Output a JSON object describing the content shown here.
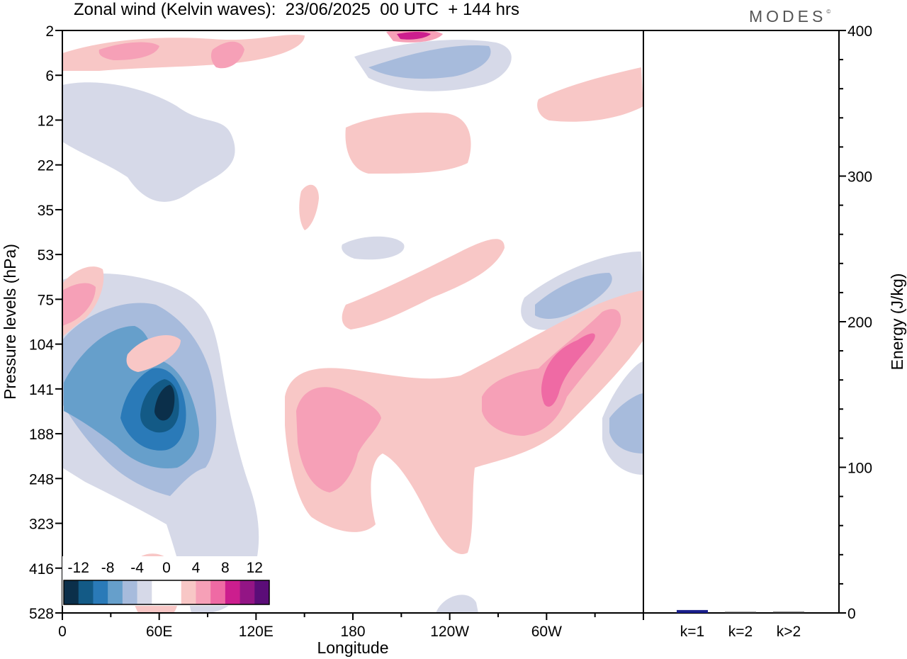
{
  "title": "Zonal wind (Kelvin waves):  23/06/2025  00 UTC  + 144 hrs",
  "logo": "MODES",
  "logo_mark": "©",
  "colors": {
    "scale": [
      "#0b2f4a",
      "#135a86",
      "#2a7ab8",
      "#669fcb",
      "#a7bbdc",
      "#d6d9e8",
      "#ffffff",
      "#ffffff",
      "#f8c7c6",
      "#f6a0b7",
      "#ef6aa4",
      "#cc1e8e",
      "#931585",
      "#5b0d78"
    ],
    "k1_bar": "#1a1f8c"
  },
  "chart_data": [
    {
      "type": "heatmap",
      "title": "Zonal wind (Kelvin waves):  23/06/2025  00 UTC  + 144 hrs",
      "xlabel": "Longitude",
      "ylabel": "Pressure levels (hPa)",
      "x_ticks": [
        "0",
        "60E",
        "120E",
        "180",
        "120W",
        "60W"
      ],
      "y_ticks": [
        "2",
        "6",
        "12",
        "22",
        "35",
        "53",
        "75",
        "104",
        "141",
        "188",
        "248",
        "323",
        "416",
        "528"
      ],
      "colorbar_labels": [
        "-12",
        "-8",
        "-4",
        "0",
        "4",
        "8",
        "12"
      ],
      "colorbar_levels": [
        -14,
        -12,
        -10,
        -8,
        -6,
        -4,
        -2,
        0,
        2,
        4,
        6,
        8,
        10,
        12,
        14
      ],
      "features": [
        {
          "center": [
            "60E",
            "141"
          ],
          "value": -13,
          "sign": "negative"
        },
        {
          "center": [
            "160E",
            "188"
          ],
          "value": 5,
          "sign": "positive"
        },
        {
          "center": [
            "90W",
            "141"
          ],
          "value": 7,
          "sign": "positive"
        },
        {
          "center": [
            "150E",
            "2"
          ],
          "value": 10,
          "sign": "positive"
        }
      ]
    },
    {
      "type": "bar",
      "categories": [
        "k=1",
        "k=2",
        "k>2"
      ],
      "values": [
        2,
        0.5,
        0.8
      ],
      "ylabel": "Energy (J/kg)",
      "ylim": [
        0,
        400
      ],
      "y_ticks": [
        "0",
        "100",
        "200",
        "300",
        "400"
      ]
    }
  ]
}
